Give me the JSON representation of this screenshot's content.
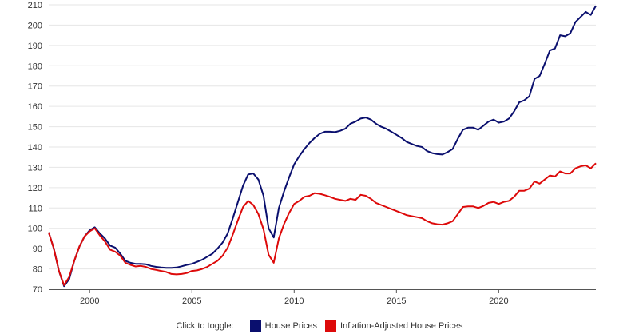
{
  "chart_data": {
    "type": "line",
    "title": "",
    "xlabel": "",
    "ylabel": "",
    "xlim": [
      1998.0,
      2024.75
    ],
    "ylim": [
      70,
      210
    ],
    "x_ticks": [
      2000,
      2005,
      2010,
      2015,
      2020
    ],
    "y_ticks": [
      70,
      80,
      90,
      100,
      110,
      120,
      130,
      140,
      150,
      160,
      170,
      180,
      190,
      200,
      210
    ],
    "grid": "horizontal",
    "legend_position": "bottom-center",
    "series": [
      {
        "name": "House Prices",
        "color": "#0a0f6e",
        "points": [
          [
            1998.0,
            98
          ],
          [
            1998.25,
            90
          ],
          [
            1998.5,
            79
          ],
          [
            1998.75,
            71.5
          ],
          [
            1999.0,
            75
          ],
          [
            1999.25,
            84
          ],
          [
            1999.5,
            91
          ],
          [
            1999.75,
            96
          ],
          [
            2000.0,
            99
          ],
          [
            2000.25,
            100.5
          ],
          [
            2000.5,
            97.5
          ],
          [
            2000.75,
            95
          ],
          [
            2001.0,
            91.5
          ],
          [
            2001.25,
            90.5
          ],
          [
            2001.5,
            87.5
          ],
          [
            2001.75,
            84
          ],
          [
            2002.0,
            83
          ],
          [
            2002.25,
            82.5
          ],
          [
            2002.5,
            82.5
          ],
          [
            2002.75,
            82.3
          ],
          [
            2003.0,
            81.5
          ],
          [
            2003.25,
            81
          ],
          [
            2003.5,
            80.7
          ],
          [
            2003.75,
            80.5
          ],
          [
            2004.0,
            80.5
          ],
          [
            2004.25,
            80.7
          ],
          [
            2004.5,
            81.3
          ],
          [
            2004.75,
            82
          ],
          [
            2005.0,
            82.5
          ],
          [
            2005.25,
            83.5
          ],
          [
            2005.5,
            84.5
          ],
          [
            2005.75,
            86
          ],
          [
            2006.0,
            87.5
          ],
          [
            2006.25,
            90
          ],
          [
            2006.5,
            93
          ],
          [
            2006.75,
            97.5
          ],
          [
            2007.0,
            105
          ],
          [
            2007.25,
            113
          ],
          [
            2007.5,
            121
          ],
          [
            2007.75,
            126.5
          ],
          [
            2008.0,
            127
          ],
          [
            2008.25,
            124
          ],
          [
            2008.5,
            116
          ],
          [
            2008.75,
            100
          ],
          [
            2009.0,
            95.5
          ],
          [
            2009.25,
            110
          ],
          [
            2009.5,
            118
          ],
          [
            2009.75,
            125
          ],
          [
            2010.0,
            131.5
          ],
          [
            2010.25,
            135.5
          ],
          [
            2010.5,
            139
          ],
          [
            2010.75,
            142
          ],
          [
            2011.0,
            144.5
          ],
          [
            2011.25,
            146.5
          ],
          [
            2011.5,
            147.5
          ],
          [
            2011.75,
            147.5
          ],
          [
            2012.0,
            147.3
          ],
          [
            2012.25,
            148
          ],
          [
            2012.5,
            149
          ],
          [
            2012.75,
            151.5
          ],
          [
            2013.0,
            152.5
          ],
          [
            2013.25,
            154
          ],
          [
            2013.5,
            154.5
          ],
          [
            2013.75,
            153.5
          ],
          [
            2014.0,
            151.5
          ],
          [
            2014.25,
            150
          ],
          [
            2014.5,
            149
          ],
          [
            2014.75,
            147.5
          ],
          [
            2015.0,
            146
          ],
          [
            2015.25,
            144.5
          ],
          [
            2015.5,
            142.5
          ],
          [
            2015.75,
            141.5
          ],
          [
            2016.0,
            140.5
          ],
          [
            2016.25,
            140
          ],
          [
            2016.5,
            138
          ],
          [
            2016.75,
            137
          ],
          [
            2017.0,
            136.5
          ],
          [
            2017.25,
            136.3
          ],
          [
            2017.5,
            137.5
          ],
          [
            2017.75,
            139
          ],
          [
            2018.0,
            144
          ],
          [
            2018.25,
            148.5
          ],
          [
            2018.5,
            149.5
          ],
          [
            2018.75,
            149.5
          ],
          [
            2019.0,
            148.5
          ],
          [
            2019.25,
            150.5
          ],
          [
            2019.5,
            152.5
          ],
          [
            2019.75,
            153.5
          ],
          [
            2020.0,
            152
          ],
          [
            2020.25,
            152.5
          ],
          [
            2020.5,
            154
          ],
          [
            2020.75,
            157.5
          ],
          [
            2021.0,
            162
          ],
          [
            2021.25,
            163
          ],
          [
            2021.5,
            165
          ],
          [
            2021.75,
            173.5
          ],
          [
            2022.0,
            175
          ],
          [
            2022.25,
            181
          ],
          [
            2022.5,
            187.5
          ],
          [
            2022.75,
            188.5
          ],
          [
            2023.0,
            195
          ],
          [
            2023.25,
            194.5
          ],
          [
            2023.5,
            196
          ],
          [
            2023.75,
            201.5
          ],
          [
            2024.0,
            204
          ],
          [
            2024.25,
            206.5
          ],
          [
            2024.5,
            205
          ],
          [
            2024.75,
            209.5
          ]
        ]
      },
      {
        "name": "Inflation-Adjusted House Prices",
        "color": "#dd0a0a",
        "points": [
          [
            1998.0,
            98
          ],
          [
            1998.25,
            90
          ],
          [
            1998.5,
            79
          ],
          [
            1998.75,
            72
          ],
          [
            1999.0,
            76
          ],
          [
            1999.25,
            84
          ],
          [
            1999.5,
            91
          ],
          [
            1999.75,
            96
          ],
          [
            2000.0,
            98.5
          ],
          [
            2000.25,
            100
          ],
          [
            2000.5,
            96.5
          ],
          [
            2000.75,
            93.5
          ],
          [
            2001.0,
            89.5
          ],
          [
            2001.25,
            88.5
          ],
          [
            2001.5,
            86.5
          ],
          [
            2001.75,
            83
          ],
          [
            2002.0,
            82
          ],
          [
            2002.25,
            81.2
          ],
          [
            2002.5,
            81.5
          ],
          [
            2002.75,
            81
          ],
          [
            2003.0,
            80
          ],
          [
            2003.25,
            79.5
          ],
          [
            2003.5,
            79
          ],
          [
            2003.75,
            78.5
          ],
          [
            2004.0,
            77.5
          ],
          [
            2004.25,
            77.3
          ],
          [
            2004.5,
            77.5
          ],
          [
            2004.75,
            78
          ],
          [
            2005.0,
            79
          ],
          [
            2005.25,
            79.3
          ],
          [
            2005.5,
            80
          ],
          [
            2005.75,
            81
          ],
          [
            2006.0,
            82.5
          ],
          [
            2006.25,
            84
          ],
          [
            2006.5,
            86.5
          ],
          [
            2006.75,
            90.5
          ],
          [
            2007.0,
            97
          ],
          [
            2007.25,
            104
          ],
          [
            2007.5,
            110.5
          ],
          [
            2007.75,
            113.5
          ],
          [
            2008.0,
            111.5
          ],
          [
            2008.25,
            107
          ],
          [
            2008.5,
            99.5
          ],
          [
            2008.75,
            87
          ],
          [
            2009.0,
            83
          ],
          [
            2009.25,
            95
          ],
          [
            2009.5,
            102
          ],
          [
            2009.75,
            107.5
          ],
          [
            2010.0,
            112
          ],
          [
            2010.25,
            113.5
          ],
          [
            2010.5,
            115.5
          ],
          [
            2010.75,
            116
          ],
          [
            2011.0,
            117.3
          ],
          [
            2011.25,
            117
          ],
          [
            2011.5,
            116.3
          ],
          [
            2011.75,
            115.5
          ],
          [
            2012.0,
            114.5
          ],
          [
            2012.25,
            114
          ],
          [
            2012.5,
            113.5
          ],
          [
            2012.75,
            114.5
          ],
          [
            2013.0,
            114
          ],
          [
            2013.25,
            116.5
          ],
          [
            2013.5,
            116
          ],
          [
            2013.75,
            114.5
          ],
          [
            2014.0,
            112.5
          ],
          [
            2014.25,
            111.5
          ],
          [
            2014.5,
            110.5
          ],
          [
            2014.75,
            109.5
          ],
          [
            2015.0,
            108.5
          ],
          [
            2015.25,
            107.5
          ],
          [
            2015.5,
            106.5
          ],
          [
            2015.75,
            106
          ],
          [
            2016.0,
            105.5
          ],
          [
            2016.25,
            105
          ],
          [
            2016.5,
            103.5
          ],
          [
            2016.75,
            102.5
          ],
          [
            2017.0,
            102
          ],
          [
            2017.25,
            101.8
          ],
          [
            2017.5,
            102.5
          ],
          [
            2017.75,
            103.5
          ],
          [
            2018.0,
            107
          ],
          [
            2018.25,
            110.5
          ],
          [
            2018.5,
            110.8
          ],
          [
            2018.75,
            110.8
          ],
          [
            2019.0,
            110
          ],
          [
            2019.25,
            111
          ],
          [
            2019.5,
            112.5
          ],
          [
            2019.75,
            113
          ],
          [
            2020.0,
            112
          ],
          [
            2020.25,
            113
          ],
          [
            2020.5,
            113.5
          ],
          [
            2020.75,
            115.5
          ],
          [
            2021.0,
            118.5
          ],
          [
            2021.25,
            118.5
          ],
          [
            2021.5,
            119.5
          ],
          [
            2021.75,
            123
          ],
          [
            2022.0,
            122
          ],
          [
            2022.25,
            124
          ],
          [
            2022.5,
            126
          ],
          [
            2022.75,
            125.5
          ],
          [
            2023.0,
            128
          ],
          [
            2023.25,
            127
          ],
          [
            2023.5,
            127
          ],
          [
            2023.75,
            129.5
          ],
          [
            2024.0,
            130.5
          ],
          [
            2024.25,
            131
          ],
          [
            2024.5,
            129.5
          ],
          [
            2024.75,
            132
          ]
        ]
      }
    ]
  },
  "legend": {
    "prompt": "Click to toggle:"
  }
}
